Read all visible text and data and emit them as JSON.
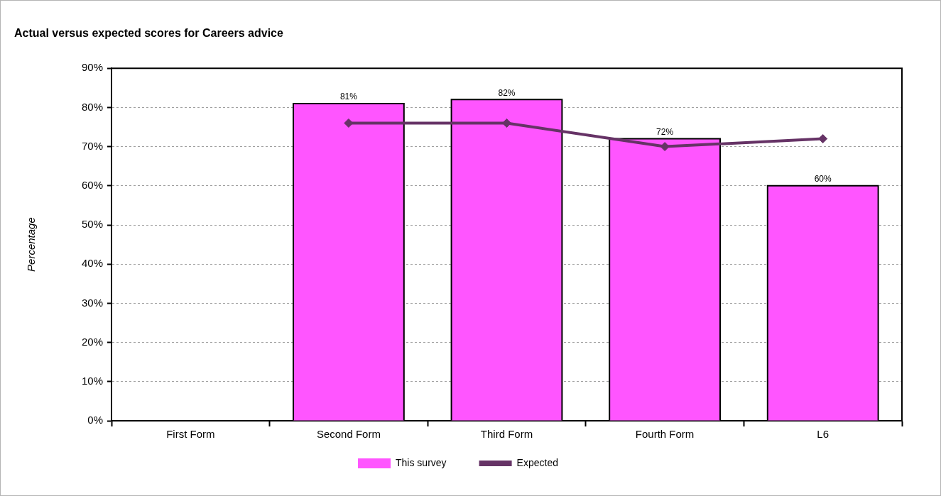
{
  "chart_data": {
    "type": "bar",
    "title": "Actual versus expected scores for Careers advice",
    "ylabel": "Percentage",
    "categories": [
      "First Form",
      "Second Form",
      "Third Form",
      "Fourth Form",
      "L6"
    ],
    "series": [
      {
        "name": "This survey",
        "type": "bar",
        "color": "#ff55ff",
        "values": [
          null,
          81,
          82,
          72,
          60
        ],
        "value_labels": [
          null,
          "81%",
          "82%",
          "72%",
          "60%"
        ]
      },
      {
        "name": "Expected",
        "type": "line",
        "color": "#663366",
        "values": [
          null,
          76,
          76,
          70,
          72
        ]
      }
    ],
    "ylim": [
      0,
      90
    ],
    "yticks": [
      {
        "value": 0,
        "label": "0%"
      },
      {
        "value": 10,
        "label": "10%"
      },
      {
        "value": 20,
        "label": "20%"
      },
      {
        "value": 30,
        "label": "30%"
      },
      {
        "value": 40,
        "label": "40%"
      },
      {
        "value": 50,
        "label": "50%"
      },
      {
        "value": 60,
        "label": "60%"
      },
      {
        "value": 70,
        "label": "70%"
      },
      {
        "value": 80,
        "label": "80%"
      },
      {
        "value": 90,
        "label": "90%"
      }
    ],
    "grid": "y",
    "legend": "bottom",
    "marker": "diamond"
  }
}
